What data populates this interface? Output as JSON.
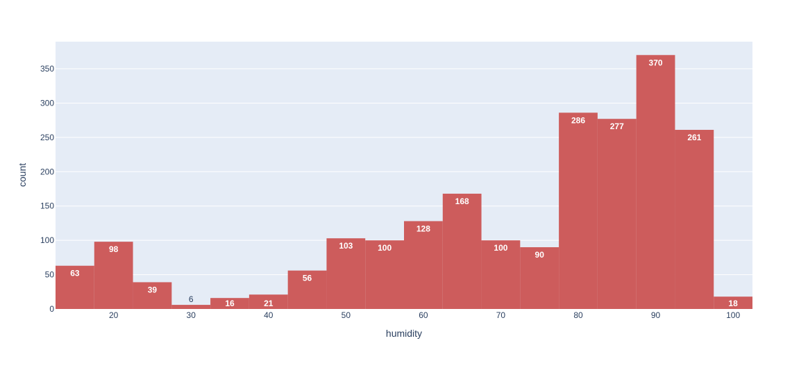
{
  "chart_data": {
    "type": "bar",
    "xlabel": "humidity",
    "ylabel": "count",
    "bin_edges": [
      12.5,
      17.5,
      22.5,
      27.5,
      32.5,
      37.5,
      42.5,
      47.5,
      52.5,
      57.5,
      62.5,
      67.5,
      72.5,
      77.5,
      82.5,
      87.5,
      92.5,
      97.5,
      102.5
    ],
    "values": [
      63,
      98,
      39,
      6,
      16,
      21,
      56,
      103,
      100,
      128,
      168,
      100,
      90,
      286,
      277,
      370,
      261,
      18
    ],
    "labels": [
      "63",
      "98",
      "39",
      "6",
      "16",
      "21",
      "56",
      "103",
      "100",
      "128",
      "168",
      "100",
      "90",
      "286",
      "277",
      "370",
      "261",
      "18"
    ],
    "xlim": [
      12.5,
      102.5
    ],
    "ylim": [
      0,
      389.5
    ],
    "x_ticks": [
      20,
      30,
      40,
      50,
      60,
      70,
      80,
      90,
      100
    ],
    "x_tick_labels": [
      "20",
      "30",
      "40",
      "50",
      "60",
      "70",
      "80",
      "90",
      "100"
    ],
    "y_ticks": [
      0,
      50,
      100,
      150,
      200,
      250,
      300,
      350
    ],
    "y_tick_labels": [
      "0",
      "50",
      "100",
      "150",
      "200",
      "250",
      "300",
      "350"
    ],
    "grid": true,
    "bar_color": "#cd5c5c",
    "plot_bg": "#e5ecf6",
    "grid_color": "#ffffff",
    "label_color_inside": "#ffffff",
    "label_color_outside": "#2a3f5f",
    "tick_color": "#2a3f5f"
  }
}
